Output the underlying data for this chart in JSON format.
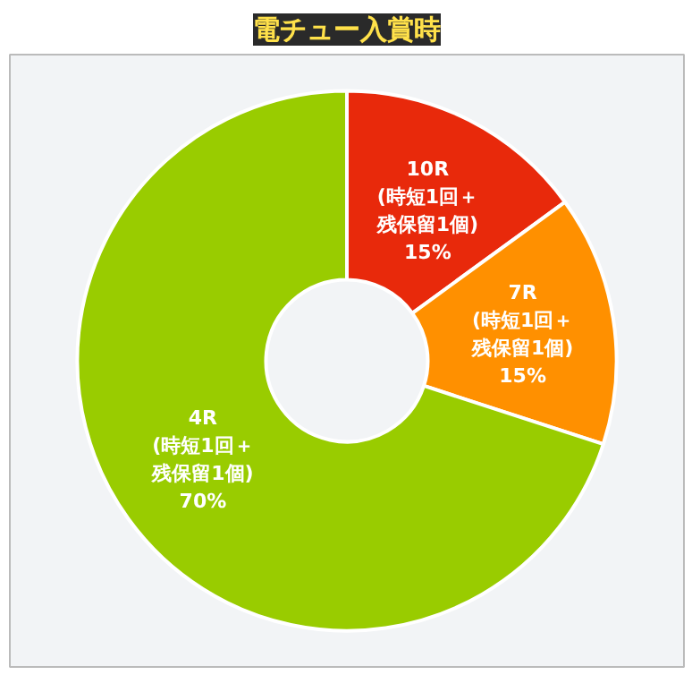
{
  "chart_data": {
    "type": "donut",
    "title": "電チュー入賞時",
    "categories": [
      "10R\n(時短1回＋残保留1個)",
      "7R\n(時短1回＋残保留1個)",
      "4R\n(時短1回＋残保留1個)"
    ],
    "values": [
      15,
      15,
      70
    ],
    "value_labels": [
      "15%",
      "15%",
      "70%"
    ],
    "colors": [
      "#e8290b",
      "#ff9000",
      "#99cc00"
    ]
  }
}
